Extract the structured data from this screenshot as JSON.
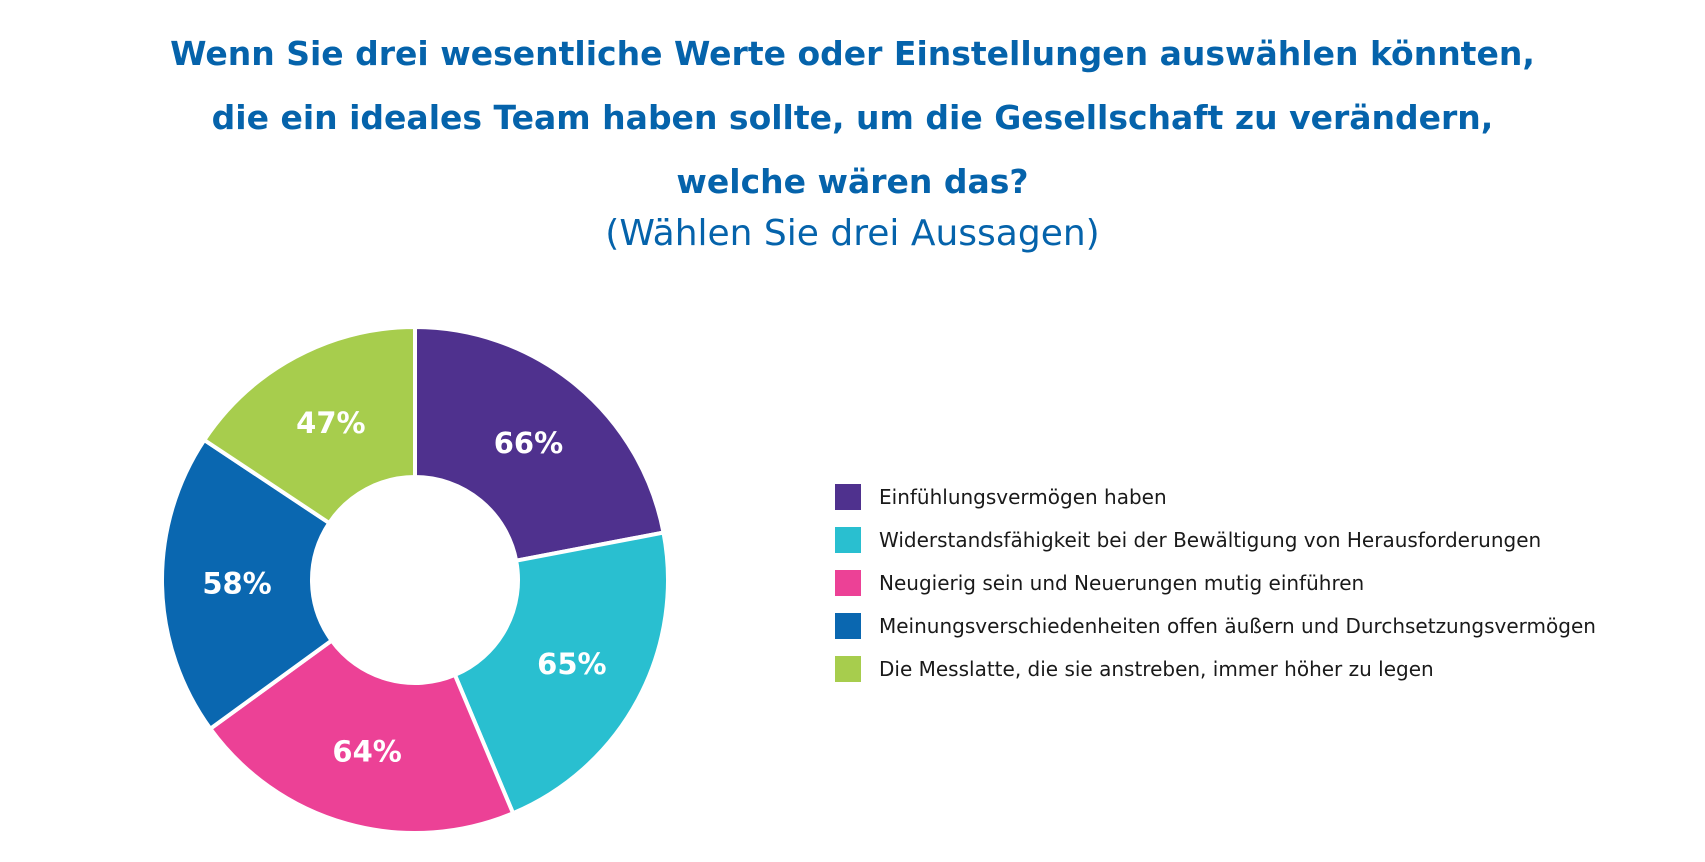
{
  "header": {
    "title_lines": [
      "Wenn Sie drei wesentliche Werte oder Einstellungen auswählen könnten,",
      "die ein ideales Team haben sollte, um die Gesellschaft zu verändern,",
      "welche wären das?"
    ],
    "subtitle": "(Wählen Sie drei Aussagen)"
  },
  "chart_data": {
    "type": "pie",
    "donut": true,
    "legend_position": "right",
    "categories": [
      "Einfühlungsvermögen haben",
      "Widerstandsfähigkeit bei der Bewältigung von Herausforderungen",
      "Neugierig sein und Neuerungen mutig einführen",
      "Meinungsverschiedenheiten offen äußern und Durchsetzungsvermögen",
      "Die Messlatte, die sie anstreben, immer höher zu legen"
    ],
    "values": [
      66,
      65,
      64,
      58,
      47
    ],
    "data_labels": [
      "66%",
      "65%",
      "64%",
      "58%",
      "47%"
    ],
    "colors": [
      "#4f318e",
      "#29bfd0",
      "#ec4196",
      "#0a67b0",
      "#a7cd4d"
    ]
  }
}
